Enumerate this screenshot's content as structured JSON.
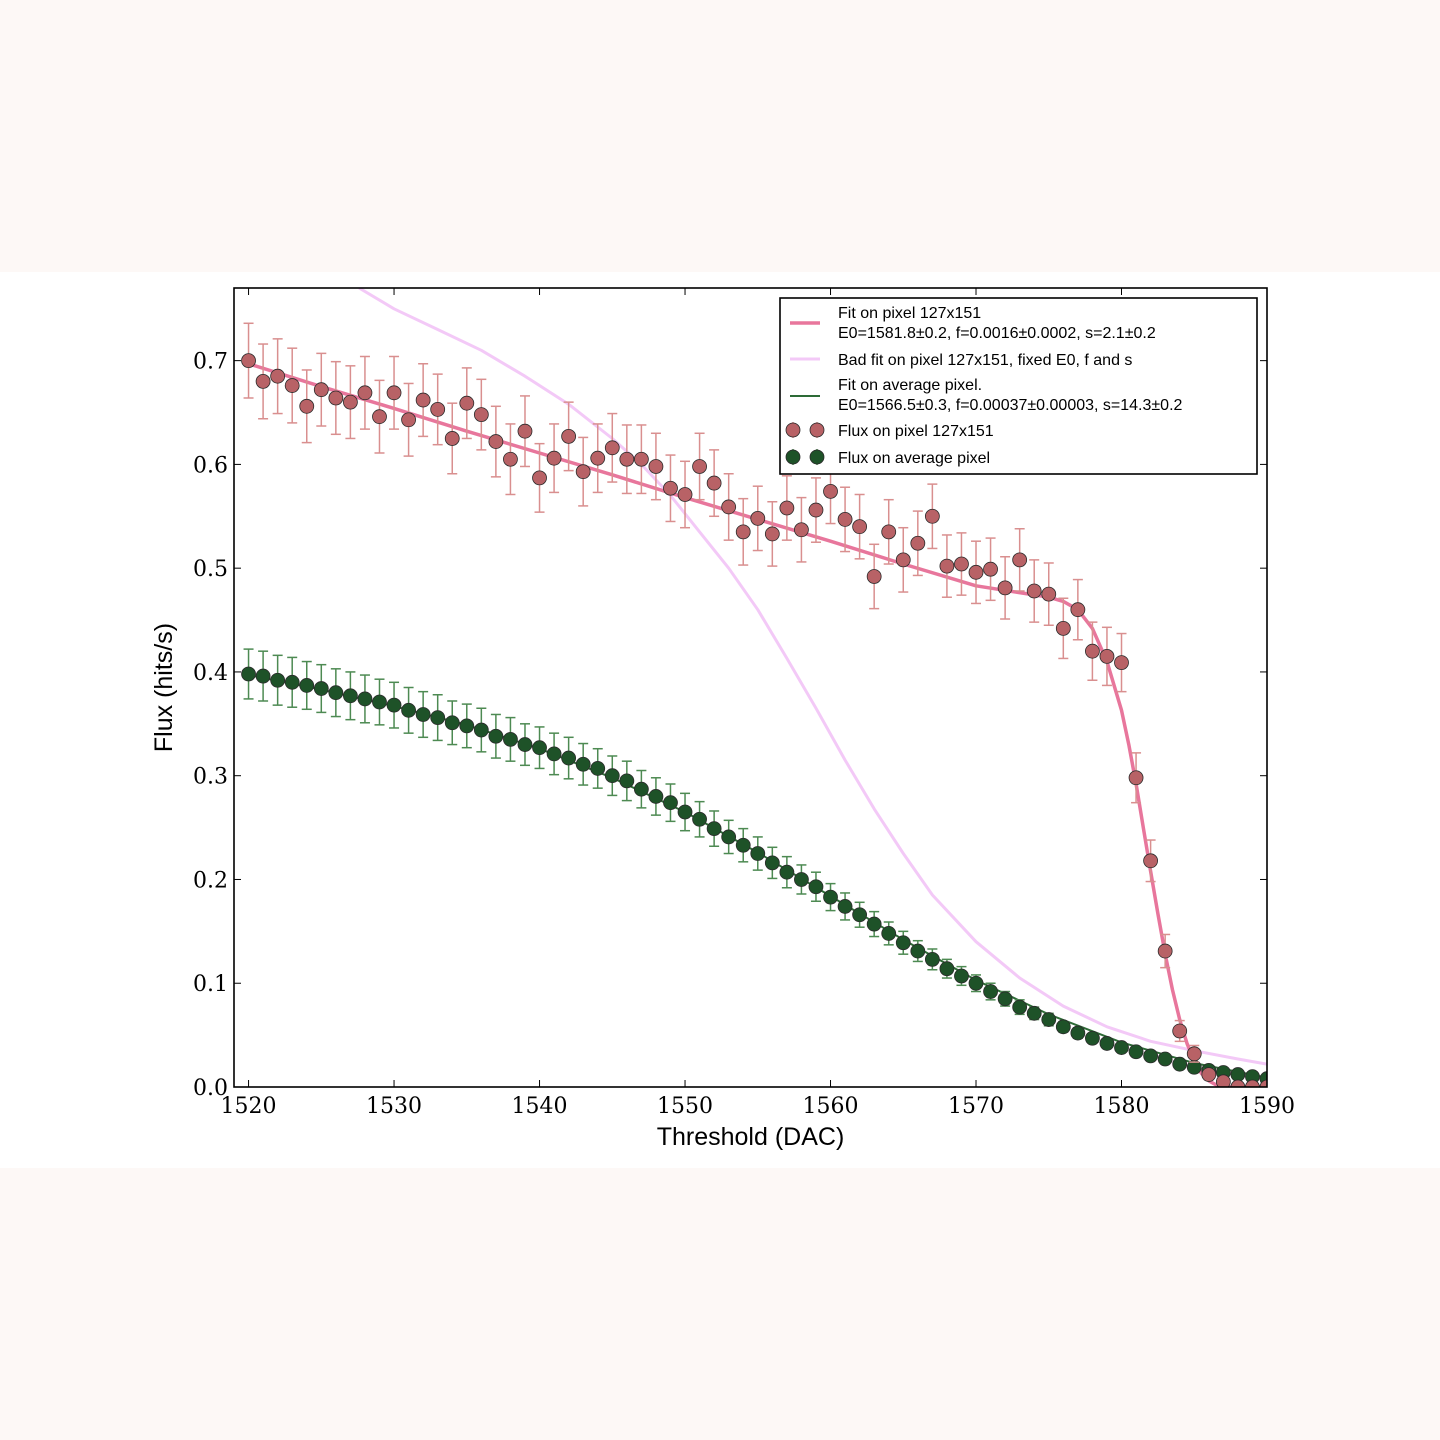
{
  "chart_data": {
    "type": "scatter",
    "title": "",
    "xlabel": "Threshold (DAC)",
    "ylabel": "Flux (hits/s)",
    "xlim": [
      1519,
      1590
    ],
    "ylim": [
      0.0,
      0.77
    ],
    "xticks": [
      1520,
      1530,
      1540,
      1550,
      1560,
      1570,
      1580,
      1590
    ],
    "yticks": [
      0.0,
      0.1,
      0.2,
      0.3,
      0.4,
      0.5,
      0.6,
      0.7
    ],
    "legend_position": "top-right",
    "grid": false,
    "series": [
      {
        "name": "Fit on pixel 127x151",
        "name_line2": "E0=1581.8±0.2, f=0.0016±0.0002, s=2.1±0.2",
        "kind": "line",
        "color": "#e8769c",
        "x": [
          1520,
          1525,
          1530,
          1535,
          1540,
          1545,
          1550,
          1555,
          1560,
          1565,
          1570,
          1575,
          1576,
          1577,
          1578,
          1579,
          1580,
          1580.5,
          1581,
          1581.5,
          1582,
          1582.5,
          1583,
          1583.5,
          1584,
          1584.5,
          1585,
          1585.5,
          1586,
          1586.5,
          1587,
          1587.5,
          1588,
          1589,
          1590
        ],
        "y": [
          0.697,
          0.675,
          0.654,
          0.632,
          0.611,
          0.59,
          0.568,
          0.547,
          0.526,
          0.504,
          0.483,
          0.472,
          0.468,
          0.46,
          0.442,
          0.41,
          0.363,
          0.33,
          0.292,
          0.25,
          0.208,
          0.167,
          0.128,
          0.094,
          0.065,
          0.042,
          0.025,
          0.013,
          0.006,
          0.002,
          0.0,
          0.0,
          0.0,
          0.0,
          0.0
        ]
      },
      {
        "name": "Bad fit on pixel 127x151, fixed E0, f and s",
        "kind": "line",
        "color": "#f3c9f7",
        "x": [
          1527.6,
          1530,
          1533,
          1536,
          1539,
          1542,
          1545,
          1547,
          1549,
          1551,
          1553,
          1555,
          1557,
          1559,
          1561,
          1563,
          1565,
          1567,
          1570,
          1573,
          1576,
          1579,
          1582,
          1585,
          1588,
          1590
        ],
        "y": [
          0.77,
          0.75,
          0.73,
          0.71,
          0.685,
          0.658,
          0.625,
          0.6,
          0.57,
          0.535,
          0.5,
          0.46,
          0.413,
          0.365,
          0.315,
          0.268,
          0.225,
          0.185,
          0.14,
          0.105,
          0.078,
          0.058,
          0.044,
          0.035,
          0.027,
          0.022
        ]
      },
      {
        "name": "Fit on average pixel.",
        "name_line2": "E0=1566.5±0.3, f=0.00037±0.00003, s=14.3±0.2",
        "kind": "line",
        "color": "#2d6b36",
        "x": [
          1520,
          1525,
          1530,
          1535,
          1540,
          1545,
          1550,
          1555,
          1560,
          1565,
          1570,
          1575,
          1580,
          1585,
          1590
        ],
        "y": [
          0.397,
          0.383,
          0.367,
          0.349,
          0.326,
          0.298,
          0.265,
          0.226,
          0.184,
          0.142,
          0.103,
          0.07,
          0.043,
          0.023,
          0.009
        ]
      },
      {
        "name": "Flux on pixel 127x151",
        "kind": "points",
        "marker_color": "#b86266",
        "errorbar_color": "#d98f8f",
        "x": [
          1520,
          1521,
          1522,
          1523,
          1524,
          1525,
          1526,
          1527,
          1528,
          1529,
          1530,
          1531,
          1532,
          1533,
          1534,
          1535,
          1536,
          1537,
          1538,
          1539,
          1540,
          1541,
          1542,
          1543,
          1544,
          1545,
          1546,
          1547,
          1548,
          1549,
          1550,
          1551,
          1552,
          1553,
          1554,
          1555,
          1556,
          1557,
          1558,
          1559,
          1560,
          1561,
          1562,
          1563,
          1564,
          1565,
          1566,
          1567,
          1568,
          1569,
          1570,
          1571,
          1572,
          1573,
          1574,
          1575,
          1576,
          1577,
          1578,
          1579,
          1580,
          1581,
          1582,
          1583,
          1584,
          1585,
          1586,
          1587,
          1588,
          1589,
          1590
        ],
        "y": [
          0.7,
          0.68,
          0.685,
          0.676,
          0.656,
          0.672,
          0.664,
          0.66,
          0.669,
          0.646,
          0.669,
          0.643,
          0.662,
          0.653,
          0.625,
          0.659,
          0.648,
          0.622,
          0.605,
          0.632,
          0.587,
          0.606,
          0.627,
          0.593,
          0.606,
          0.616,
          0.605,
          0.605,
          0.598,
          0.577,
          0.571,
          0.598,
          0.582,
          0.559,
          0.535,
          0.548,
          0.533,
          0.558,
          0.537,
          0.556,
          0.574,
          0.547,
          0.54,
          0.492,
          0.535,
          0.508,
          0.524,
          0.55,
          0.502,
          0.504,
          0.496,
          0.499,
          0.481,
          0.508,
          0.478,
          0.475,
          0.442,
          0.46,
          0.42,
          0.415,
          0.409,
          0.298,
          0.218,
          0.131,
          0.054,
          0.032,
          0.012,
          0.005,
          0.0,
          0.0,
          0.0
        ],
        "err": [
          0.036,
          0.036,
          0.036,
          0.036,
          0.035,
          0.035,
          0.035,
          0.035,
          0.035,
          0.035,
          0.035,
          0.035,
          0.035,
          0.034,
          0.034,
          0.034,
          0.034,
          0.034,
          0.034,
          0.034,
          0.033,
          0.033,
          0.033,
          0.033,
          0.033,
          0.033,
          0.033,
          0.033,
          0.032,
          0.032,
          0.032,
          0.032,
          0.032,
          0.032,
          0.032,
          0.031,
          0.031,
          0.031,
          0.031,
          0.031,
          0.031,
          0.031,
          0.031,
          0.031,
          0.031,
          0.031,
          0.031,
          0.031,
          0.03,
          0.03,
          0.03,
          0.03,
          0.03,
          0.03,
          0.03,
          0.03,
          0.029,
          0.029,
          0.028,
          0.028,
          0.028,
          0.024,
          0.02,
          0.016,
          0.01,
          0.008,
          0.005,
          0.003,
          0.0,
          0.0,
          0.0
        ]
      },
      {
        "name": "Flux on average pixel",
        "kind": "points",
        "marker_color": "#1e5228",
        "errorbar_color": "#4d8a52",
        "x": [
          1520,
          1521,
          1522,
          1523,
          1524,
          1525,
          1526,
          1527,
          1528,
          1529,
          1530,
          1531,
          1532,
          1533,
          1534,
          1535,
          1536,
          1537,
          1538,
          1539,
          1540,
          1541,
          1542,
          1543,
          1544,
          1545,
          1546,
          1547,
          1548,
          1549,
          1550,
          1551,
          1552,
          1553,
          1554,
          1555,
          1556,
          1557,
          1558,
          1559,
          1560,
          1561,
          1562,
          1563,
          1564,
          1565,
          1566,
          1567,
          1568,
          1569,
          1570,
          1571,
          1572,
          1573,
          1574,
          1575,
          1576,
          1577,
          1578,
          1579,
          1580,
          1581,
          1582,
          1583,
          1584,
          1585,
          1586,
          1587,
          1588,
          1589,
          1590
        ],
        "y": [
          0.398,
          0.396,
          0.392,
          0.39,
          0.387,
          0.384,
          0.38,
          0.377,
          0.374,
          0.371,
          0.368,
          0.363,
          0.359,
          0.356,
          0.351,
          0.348,
          0.344,
          0.338,
          0.335,
          0.33,
          0.327,
          0.321,
          0.317,
          0.311,
          0.307,
          0.3,
          0.295,
          0.287,
          0.28,
          0.274,
          0.265,
          0.258,
          0.249,
          0.241,
          0.233,
          0.225,
          0.216,
          0.207,
          0.2,
          0.193,
          0.183,
          0.174,
          0.166,
          0.157,
          0.148,
          0.139,
          0.131,
          0.123,
          0.114,
          0.107,
          0.1,
          0.092,
          0.085,
          0.077,
          0.071,
          0.065,
          0.058,
          0.052,
          0.047,
          0.042,
          0.038,
          0.034,
          0.03,
          0.027,
          0.022,
          0.019,
          0.016,
          0.014,
          0.012,
          0.01,
          0.008
        ],
        "err": [
          0.024,
          0.024,
          0.024,
          0.024,
          0.023,
          0.023,
          0.023,
          0.023,
          0.023,
          0.022,
          0.022,
          0.022,
          0.022,
          0.022,
          0.021,
          0.021,
          0.021,
          0.021,
          0.021,
          0.02,
          0.02,
          0.02,
          0.02,
          0.02,
          0.019,
          0.019,
          0.019,
          0.018,
          0.018,
          0.018,
          0.018,
          0.017,
          0.017,
          0.016,
          0.016,
          0.016,
          0.015,
          0.015,
          0.014,
          0.014,
          0.013,
          0.013,
          0.012,
          0.012,
          0.011,
          0.011,
          0.01,
          0.01,
          0.009,
          0.009,
          0.008,
          0.008,
          0.007,
          0.007,
          0.006,
          0.006,
          0.005,
          0.005,
          0.004,
          0.004,
          0.004,
          0.003,
          0.003,
          0.003,
          0.002,
          0.002,
          0.002,
          0.002,
          0.001,
          0.001,
          0.001
        ]
      }
    ]
  }
}
